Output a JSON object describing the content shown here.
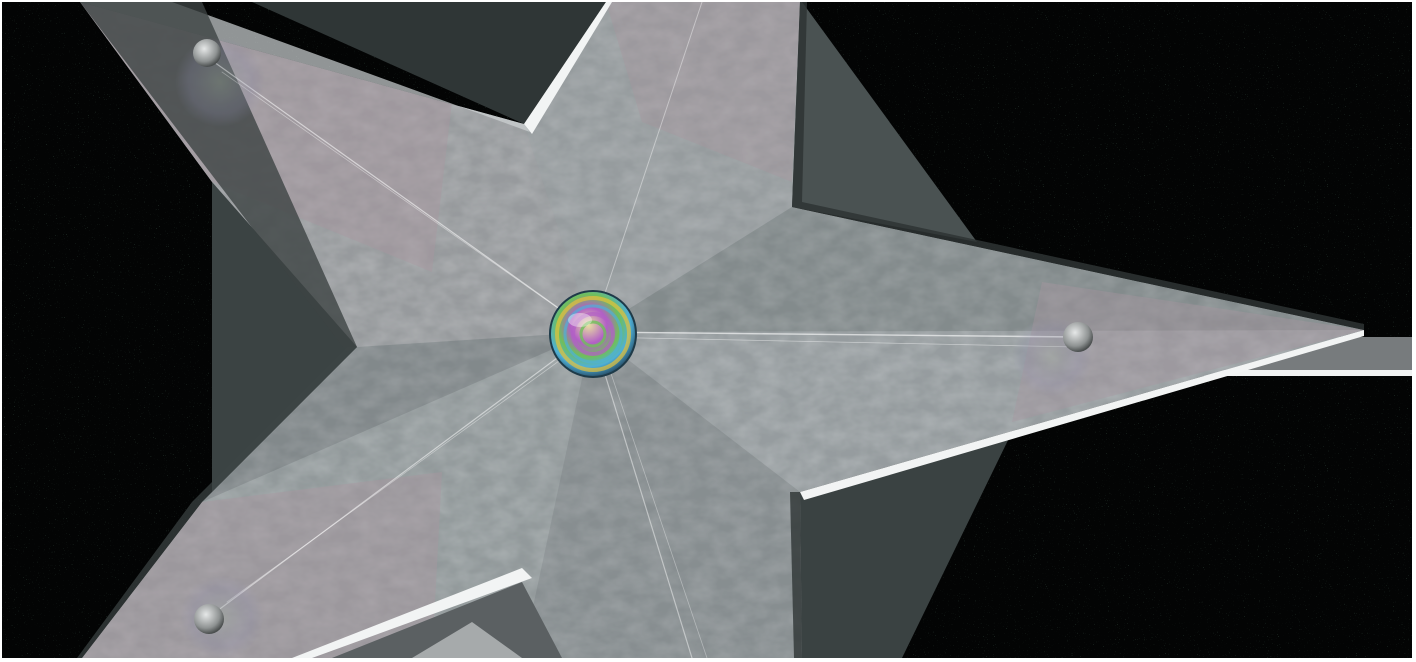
{
  "scene": {
    "background_color": "#030404",
    "star_face_color": "#8e9597",
    "star_tint_color": "#a8969f",
    "star_edge_light": "#f2f4f4",
    "star_edge_dark": "#3d4444",
    "orb_colors": [
      "#e4c23a",
      "#4fb0d6",
      "#b25fc6",
      "#6fbf5a",
      "#e08a4a"
    ],
    "highlight_beam_color": "#ffffff"
  }
}
